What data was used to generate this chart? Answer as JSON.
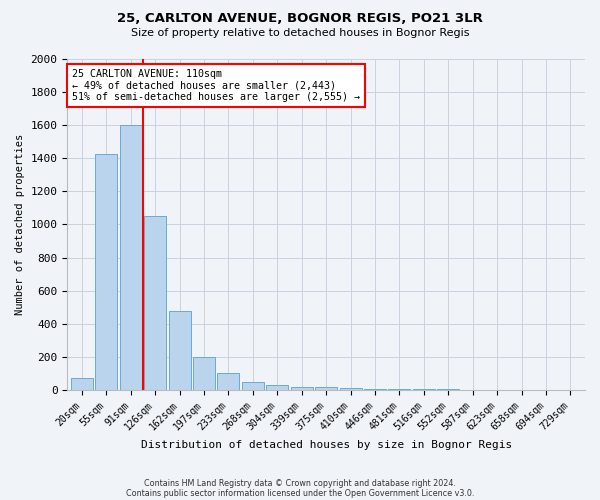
{
  "title1": "25, CARLTON AVENUE, BOGNOR REGIS, PO21 3LR",
  "title2": "Size of property relative to detached houses in Bognor Regis",
  "xlabel": "Distribution of detached houses by size in Bognor Regis",
  "ylabel": "Number of detached properties",
  "categories": [
    "20sqm",
    "55sqm",
    "91sqm",
    "126sqm",
    "162sqm",
    "197sqm",
    "233sqm",
    "268sqm",
    "304sqm",
    "339sqm",
    "375sqm",
    "410sqm",
    "446sqm",
    "481sqm",
    "516sqm",
    "552sqm",
    "587sqm",
    "623sqm",
    "658sqm",
    "694sqm",
    "729sqm"
  ],
  "values": [
    75,
    1425,
    1600,
    1050,
    475,
    200,
    100,
    50,
    30,
    20,
    15,
    10,
    8,
    5,
    4,
    3,
    2,
    2,
    1,
    1,
    0
  ],
  "bar_color": "#bad4ed",
  "bar_edge_color": "#6aaad4",
  "vline_color": "red",
  "annotation_text": "25 CARLTON AVENUE: 110sqm\n← 49% of detached houses are smaller (2,443)\n51% of semi-detached houses are larger (2,555) →",
  "annotation_box_color": "white",
  "annotation_box_edge_color": "red",
  "ylim": [
    0,
    2000
  ],
  "yticks": [
    0,
    200,
    400,
    600,
    800,
    1000,
    1200,
    1400,
    1600,
    1800,
    2000
  ],
  "footer1": "Contains HM Land Registry data © Crown copyright and database right 2024.",
  "footer2": "Contains public sector information licensed under the Open Government Licence v3.0.",
  "bg_color": "#f0f4f8",
  "grid_color": "#c8d4e0"
}
